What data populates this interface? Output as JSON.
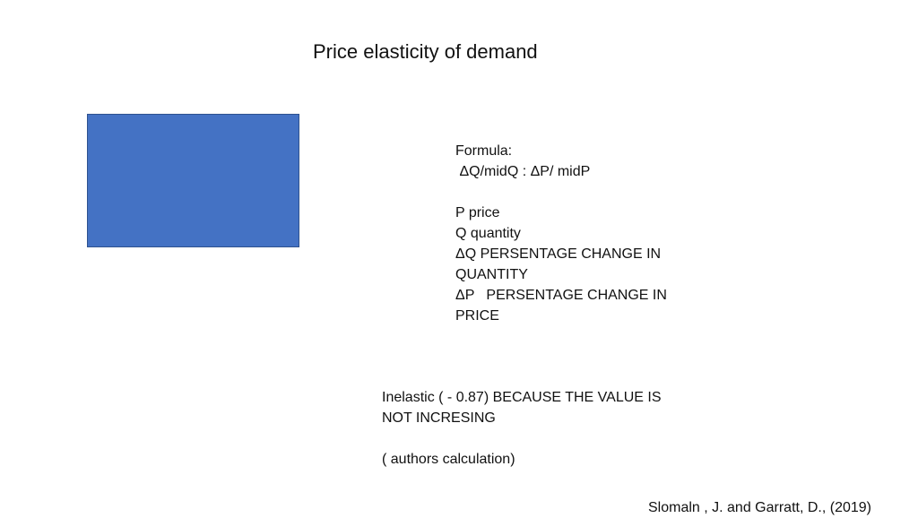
{
  "slide": {
    "title": "Price elasticity of demand",
    "shape_color": "#4472c4",
    "formula_lines": [
      "Formula:",
      " ΔQ/midQ : ΔP/ midP",
      "",
      "P price",
      "Q quantity",
      "ΔQ PERSENTAGE CHANGE IN QUANTITY",
      "ΔP   PERSENTAGE CHANGE IN PRICE"
    ],
    "result_lines": [
      "Inelastic  ( - 0.87) BECAUSE THE VALUE IS NOT INCRESING",
      "",
      "( authors calculation)"
    ],
    "citation": "Slomaln , J. and Garratt, D., (2019)"
  }
}
